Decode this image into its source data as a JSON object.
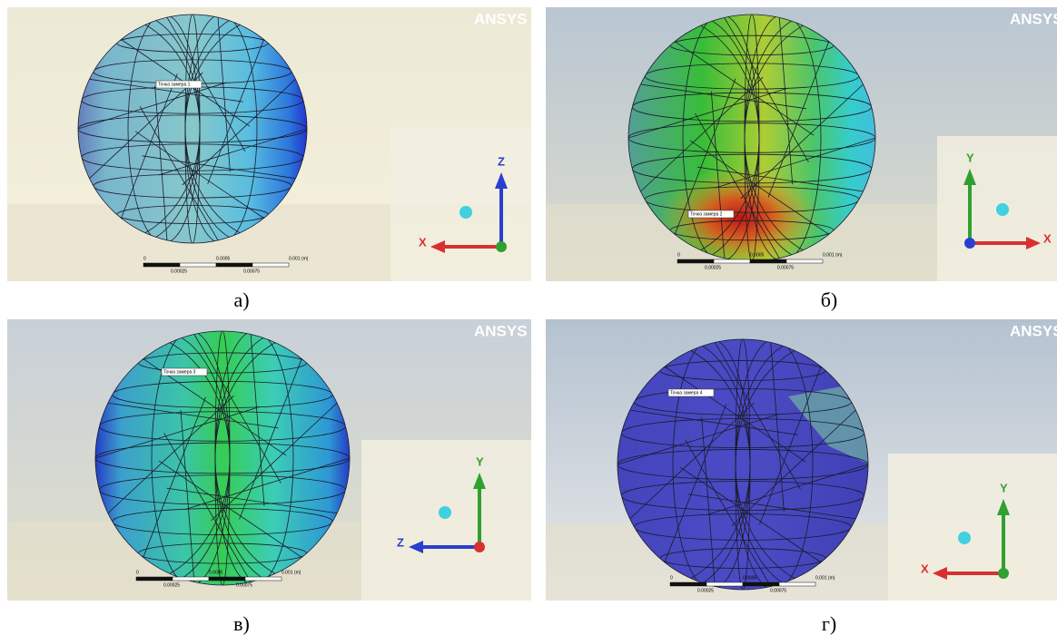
{
  "logo": "ANSYS",
  "panels": [
    {
      "label": "а)",
      "probe": "Точка замера 1",
      "axis_horizontal": "X",
      "axis_vertical": "Z",
      "scale": {
        "top": [
          "0",
          "0.0005",
          "0.001 (m)"
        ],
        "bottom": [
          "0.00025",
          "0.00075"
        ]
      }
    },
    {
      "label": "б)",
      "probe": "Точка замера 2",
      "axis_horizontal": "X",
      "axis_vertical": "Y",
      "scale": {
        "top": [
          "0",
          "0.0005",
          "0.001 (m)"
        ],
        "bottom": [
          "0.00025",
          "0.00075"
        ]
      }
    },
    {
      "label": "в)",
      "probe": "Точка замера 3",
      "axis_horizontal": "Z",
      "axis_vertical": "Y",
      "scale": {
        "top": [
          "0",
          "0.0005",
          "0.001 (m)"
        ],
        "bottom": [
          "0.00025",
          "0.00075"
        ]
      }
    },
    {
      "label": "г)",
      "probe": "Точка замера 4",
      "axis_horizontal": "X",
      "axis_vertical": "Y",
      "scale": {
        "top": [
          "0",
          "0.0005",
          "0.001 (m)"
        ],
        "bottom": [
          "0.00025",
          "0.00075"
        ]
      }
    }
  ]
}
